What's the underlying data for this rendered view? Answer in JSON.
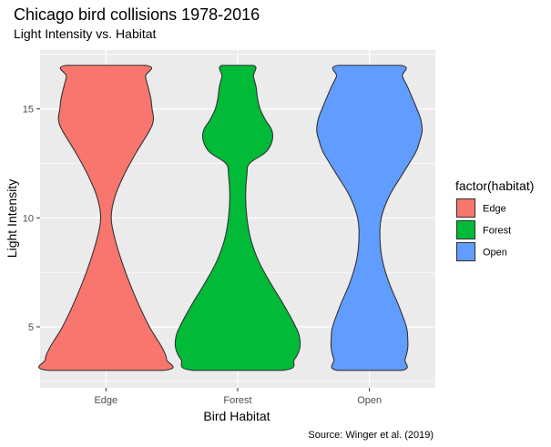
{
  "chart_data": {
    "type": "violin",
    "title": "Chicago bird collisions 1978-2016",
    "subtitle": "Light Intensity vs. Habitat",
    "xlabel": "Bird Habitat",
    "ylabel": "Light Intensity",
    "caption": "Source: Winger et al. (2019)",
    "categories": [
      "Edge",
      "Forest",
      "Open"
    ],
    "ylim": [
      2.2,
      17.7
    ],
    "yticks": [
      5,
      10,
      15
    ],
    "grid": true,
    "legend": {
      "title": "factor(habitat)",
      "position": "right",
      "entries": [
        "Edge",
        "Forest",
        "Open"
      ]
    },
    "colors": {
      "Edge": "#F8766D",
      "Forest": "#00BA38",
      "Open": "#619CFF"
    },
    "panel_background": "#EBEBEB",
    "series": [
      {
        "name": "Edge",
        "range": [
          3,
          17
        ],
        "profile_half_widths": [
          [
            3,
            0.43
          ],
          [
            3.5,
            0.46
          ],
          [
            4,
            0.43
          ],
          [
            4.5,
            0.38
          ],
          [
            5,
            0.33
          ],
          [
            6,
            0.25
          ],
          [
            7,
            0.18
          ],
          [
            8,
            0.12
          ],
          [
            9,
            0.07
          ],
          [
            10,
            0.04
          ],
          [
            11,
            0.07
          ],
          [
            12,
            0.14
          ],
          [
            13,
            0.23
          ],
          [
            14,
            0.33
          ],
          [
            14.5,
            0.36
          ],
          [
            15,
            0.35
          ],
          [
            15.5,
            0.34
          ],
          [
            16,
            0.32
          ],
          [
            16.5,
            0.3
          ],
          [
            17,
            0.3
          ]
        ]
      },
      {
        "name": "Forest",
        "range": [
          3,
          17
        ],
        "profile_half_widths": [
          [
            3,
            0.34
          ],
          [
            3.5,
            0.43
          ],
          [
            4,
            0.47
          ],
          [
            4.5,
            0.47
          ],
          [
            5,
            0.44
          ],
          [
            6,
            0.35
          ],
          [
            7,
            0.25
          ],
          [
            8,
            0.16
          ],
          [
            9,
            0.1
          ],
          [
            10,
            0.07
          ],
          [
            11,
            0.06
          ],
          [
            12,
            0.07
          ],
          [
            12.5,
            0.09
          ],
          [
            13,
            0.21
          ],
          [
            13.5,
            0.26
          ],
          [
            14,
            0.26
          ],
          [
            14.5,
            0.21
          ],
          [
            15,
            0.17
          ],
          [
            15.5,
            0.15
          ],
          [
            16,
            0.14
          ],
          [
            16.5,
            0.12
          ],
          [
            17,
            0.12
          ]
        ]
      },
      {
        "name": "Open",
        "range": [
          3,
          17
        ],
        "profile_half_widths": [
          [
            3,
            0.24
          ],
          [
            3.5,
            0.27
          ],
          [
            4,
            0.29
          ],
          [
            4.5,
            0.29
          ],
          [
            5,
            0.28
          ],
          [
            6,
            0.22
          ],
          [
            7,
            0.15
          ],
          [
            8,
            0.1
          ],
          [
            9,
            0.08
          ],
          [
            10,
            0.09
          ],
          [
            11,
            0.15
          ],
          [
            12,
            0.25
          ],
          [
            13,
            0.35
          ],
          [
            13.5,
            0.38
          ],
          [
            14,
            0.4
          ],
          [
            14.5,
            0.39
          ],
          [
            15,
            0.36
          ],
          [
            16,
            0.29
          ],
          [
            16.5,
            0.25
          ],
          [
            17,
            0.24
          ]
        ]
      }
    ]
  }
}
